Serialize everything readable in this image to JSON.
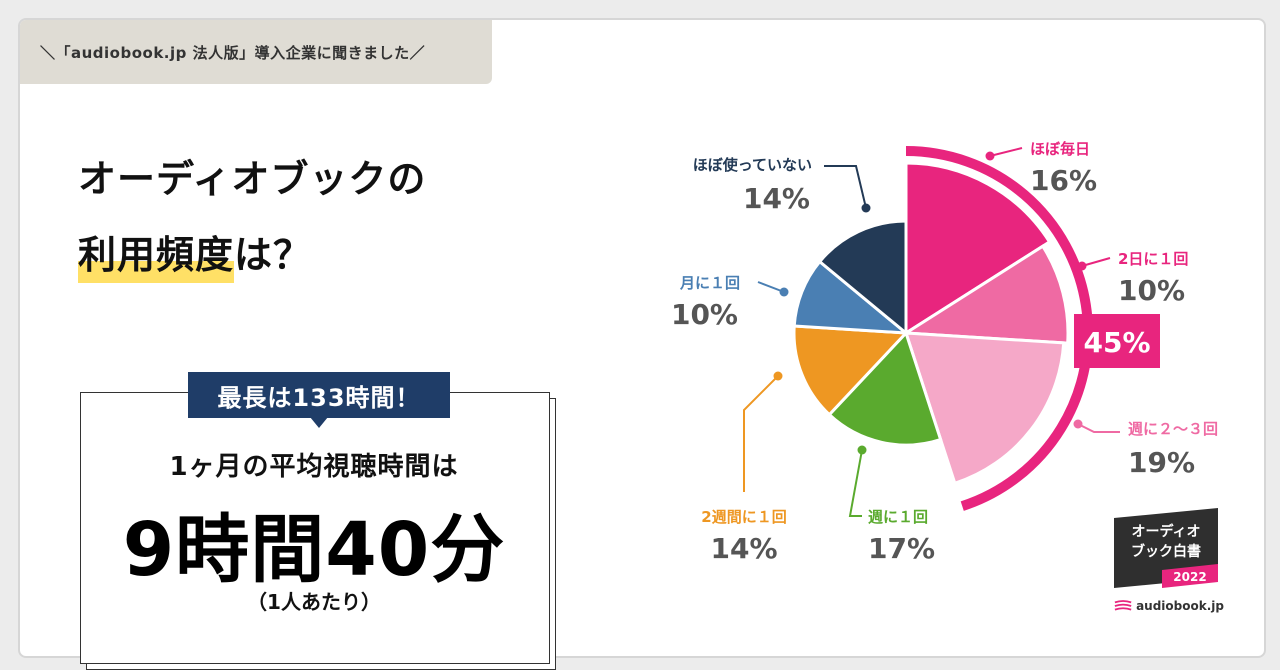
{
  "header": {
    "tab_text": "＼「audiobook.jp 法人版」導入企業に聞きました／"
  },
  "headline": {
    "line1": "オーディオブックの",
    "line2_highlight": "利用頻度",
    "line2_rest": "は？"
  },
  "stat": {
    "badge": "最長は133時間！",
    "label": "1ヶ月の平均視聴時間は",
    "value": "9時間40分",
    "note": "（1人あたり）"
  },
  "chart_data": {
    "type": "pie",
    "categories": [
      "ほぼ毎日",
      "2日に１回",
      "週に２〜３回",
      "週に１回",
      "2週間に１回",
      "月に１回",
      "ほぼ使っていない"
    ],
    "values": [
      16,
      10,
      19,
      17,
      14,
      10,
      14
    ],
    "value_labels": [
      "16%",
      "10%",
      "19%",
      "17%",
      "14%",
      "10%",
      "14%"
    ],
    "colors": [
      "#e8257e",
      "#ef6aa3",
      "#f5a8c8",
      "#5aaa2e",
      "#ee9722",
      "#4a7fb3",
      "#233a56"
    ],
    "group_label": "45%",
    "group_color": "#e8257e",
    "legend": "none"
  },
  "logo": {
    "line1": "オーディオ",
    "line2": "ブック白書",
    "year": "2022",
    "brand": "audiobook.jp"
  }
}
